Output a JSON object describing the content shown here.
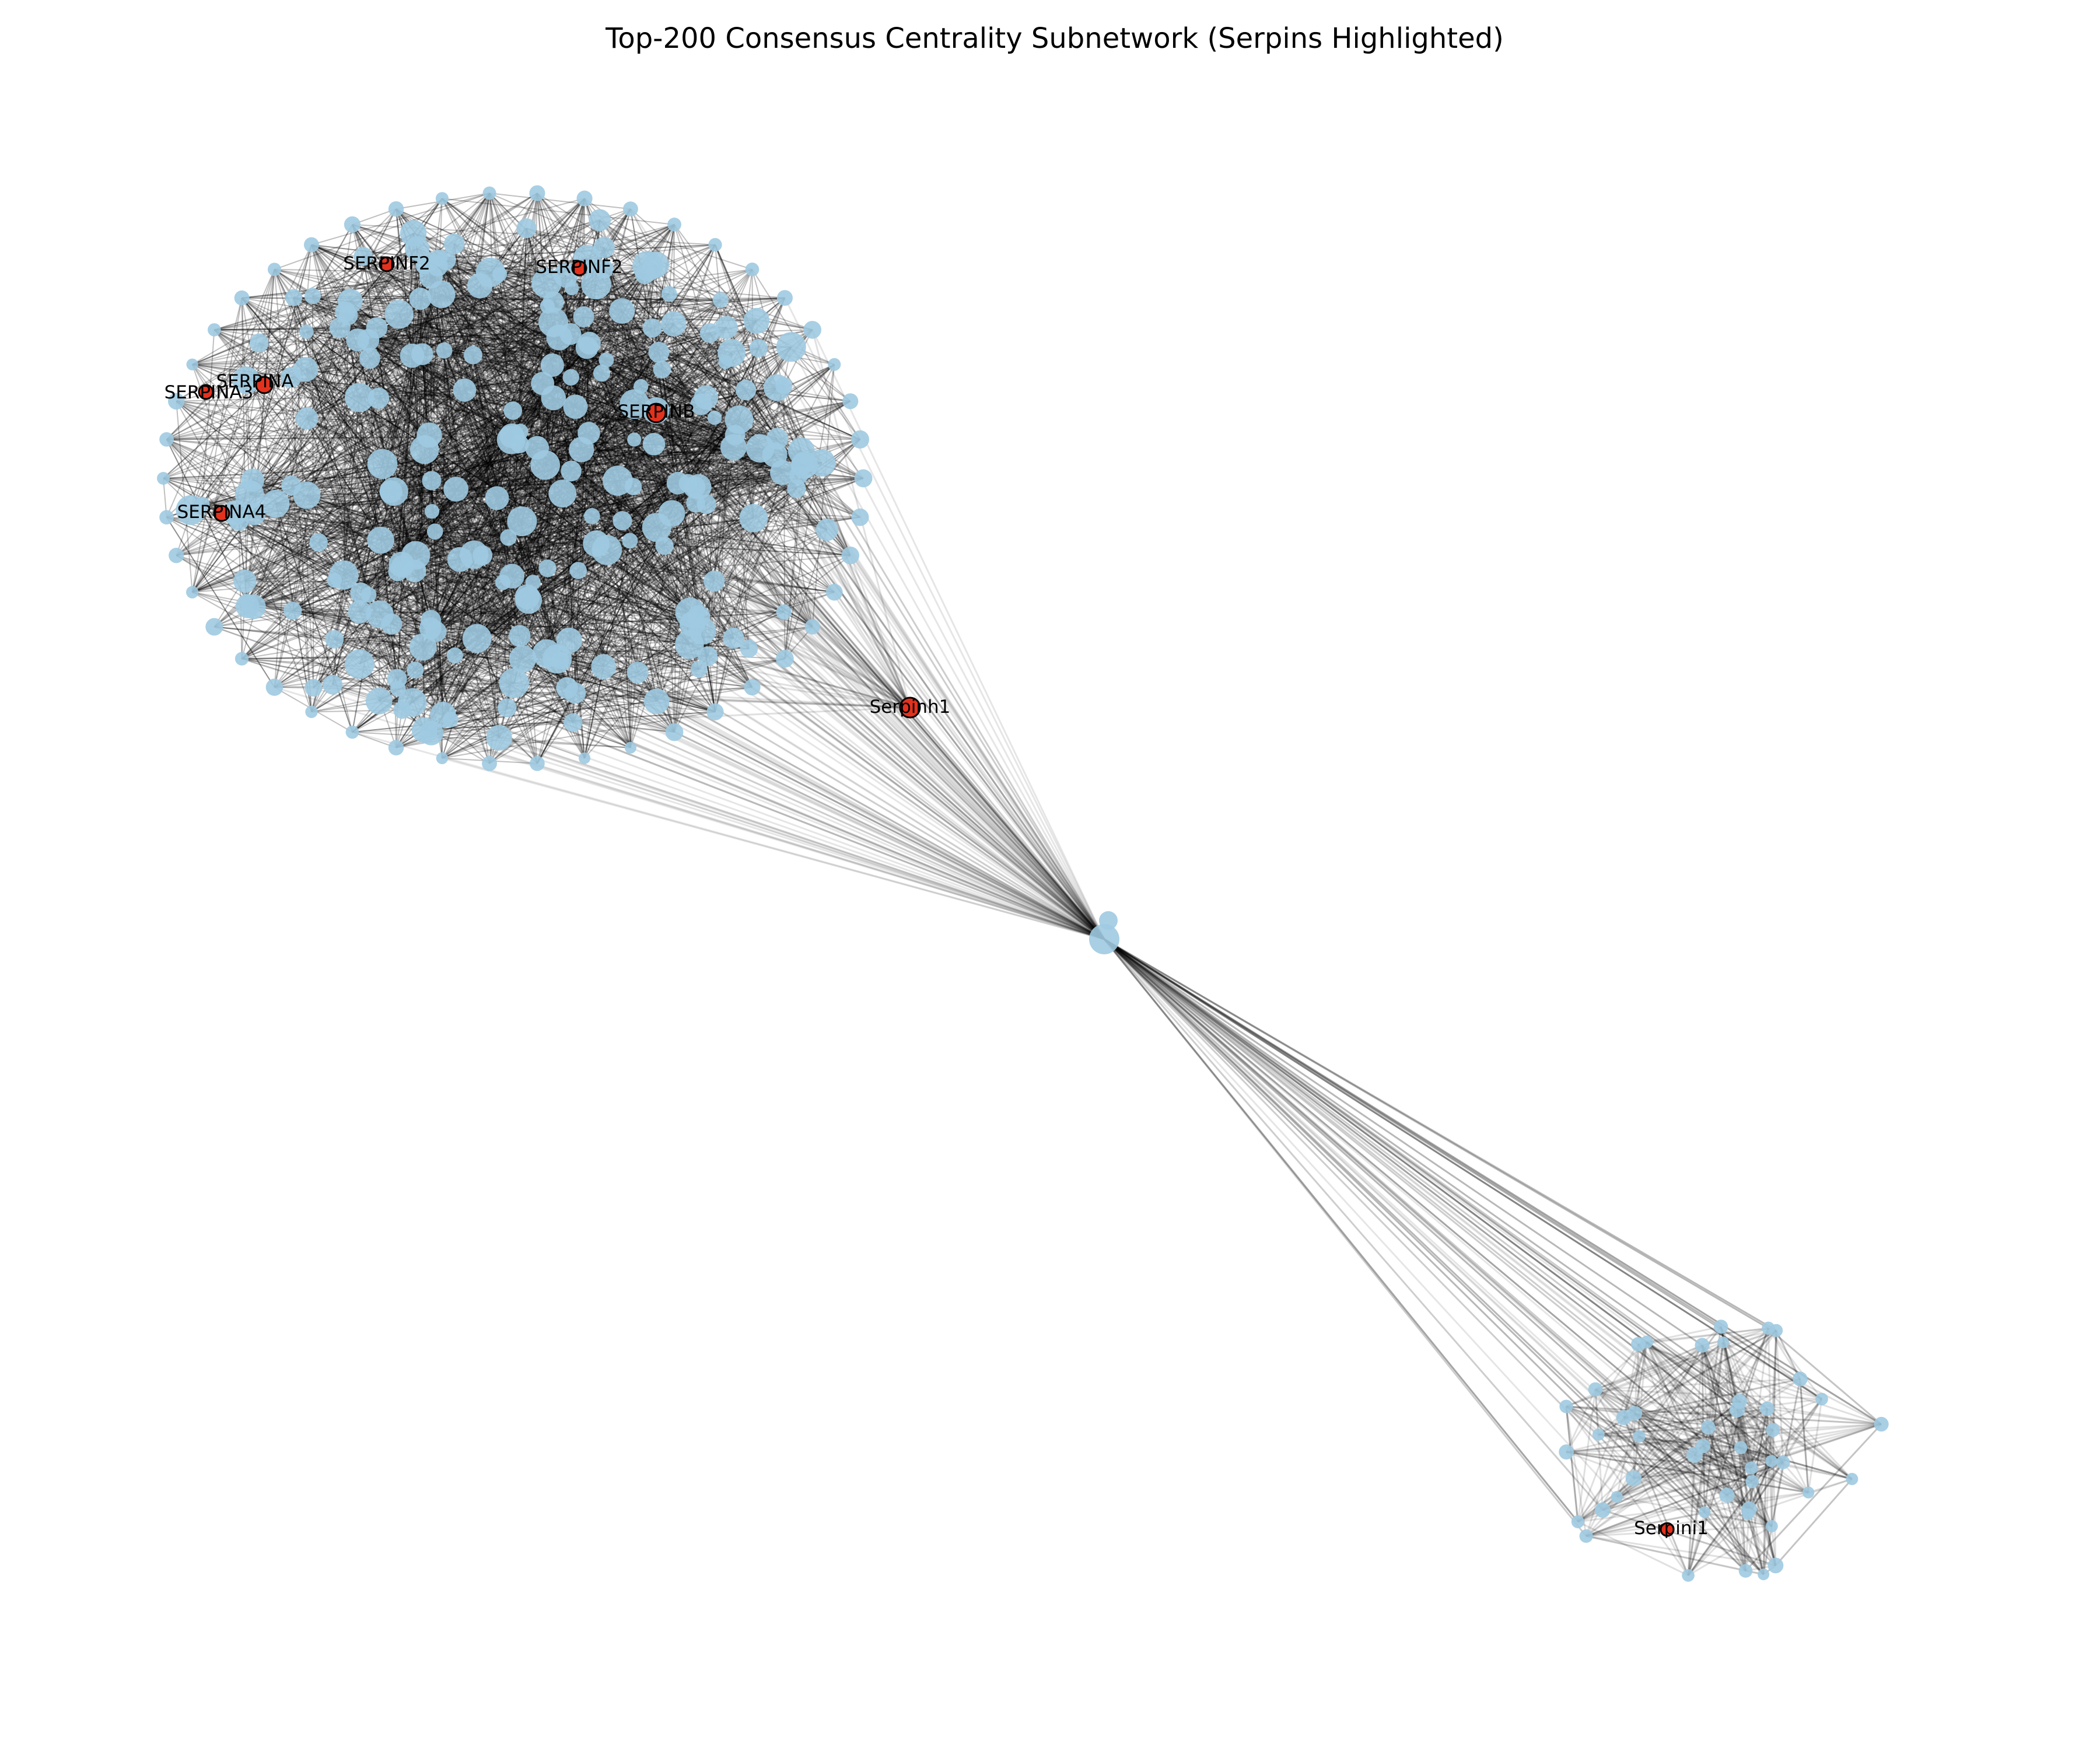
{
  "figure": {
    "title": "Top-200 Consensus Centrality Subnetwork (Serpins Highlighted)"
  },
  "colors": {
    "node_fill": "#9ecae1",
    "serpin_fill": "#e2321e",
    "serpin_stroke": "#000000",
    "edge": "#000000",
    "background": "#ffffff"
  },
  "labels": {
    "serpinf2_a": "SERPINF2",
    "serpinf2_b": "SERPINF2",
    "serpina_top": "SERPINA",
    "serpina_left": "SERPINA3",
    "serpina4": "SERPINA4",
    "serpin_center": "SERPINB",
    "serpinh1": "Serpinh1",
    "serpini1": "Serpini1"
  }
}
